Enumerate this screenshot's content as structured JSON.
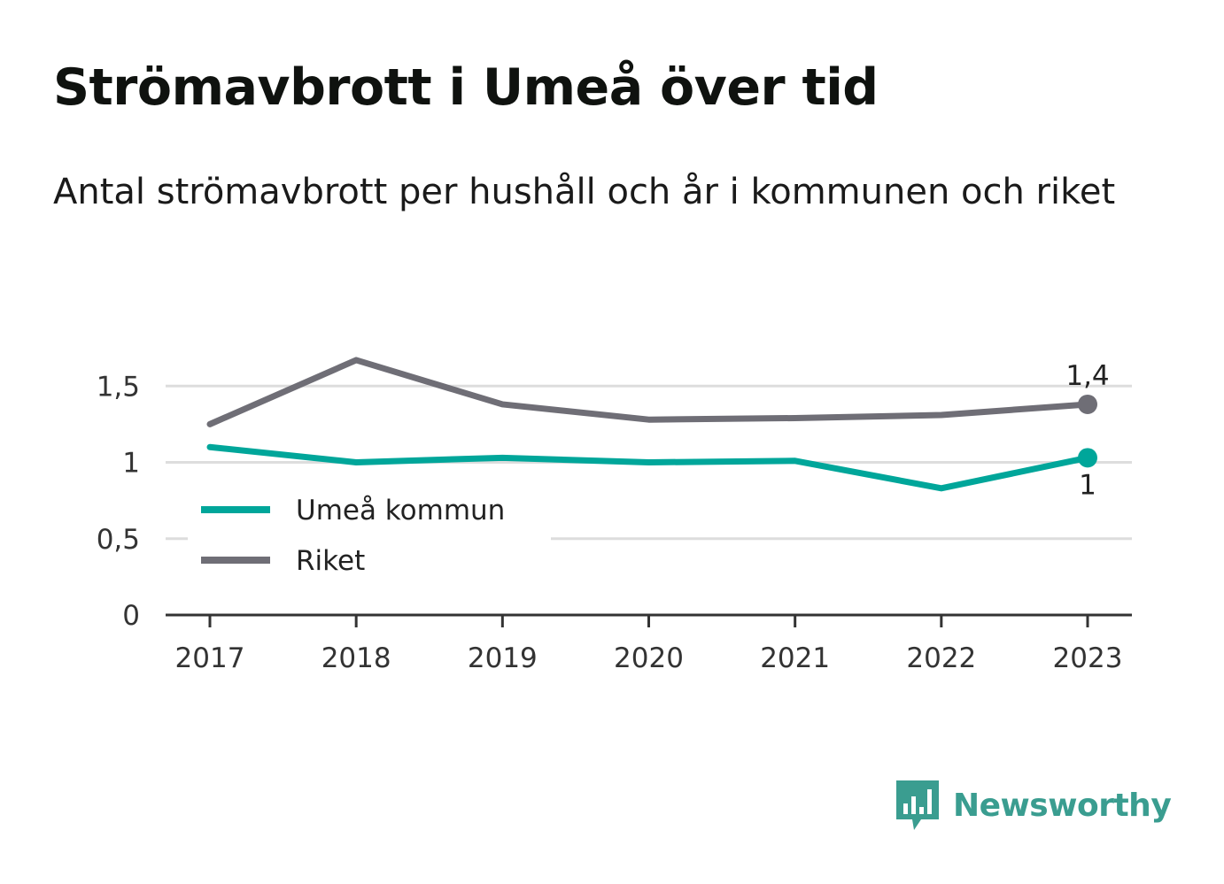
{
  "title": "Strömavbrott i Umeå över tid",
  "subtitle": "Antal strömavbrott per hushåll och år i kommunen och riket",
  "brand": {
    "name": "Newsworthy",
    "icon": "newsworthy-logo-icon",
    "color": "#3a9d90"
  },
  "chart_data": {
    "type": "line",
    "title": "Strömavbrott i Umeå över tid",
    "subtitle": "Antal strömavbrott per hushåll och år i kommunen och riket",
    "xlabel": "",
    "ylabel": "",
    "categories": [
      "2017",
      "2018",
      "2019",
      "2020",
      "2021",
      "2022",
      "2023"
    ],
    "ylim": [
      0,
      1.9
    ],
    "yticks": [
      0,
      0.5,
      1,
      1.5
    ],
    "ytick_labels": [
      "0",
      "0,5",
      "1",
      "1,5"
    ],
    "grid": true,
    "legend": "left",
    "series": [
      {
        "name": "Umeå kommun",
        "color": "#00a69a",
        "values": [
          1.1,
          1.0,
          1.03,
          1.0,
          1.01,
          0.83,
          1.03
        ],
        "end_label": "1"
      },
      {
        "name": "Riket",
        "color": "#6f6e76",
        "values": [
          1.25,
          1.67,
          1.38,
          1.28,
          1.29,
          1.31,
          1.38
        ],
        "end_label": "1,4"
      }
    ]
  }
}
